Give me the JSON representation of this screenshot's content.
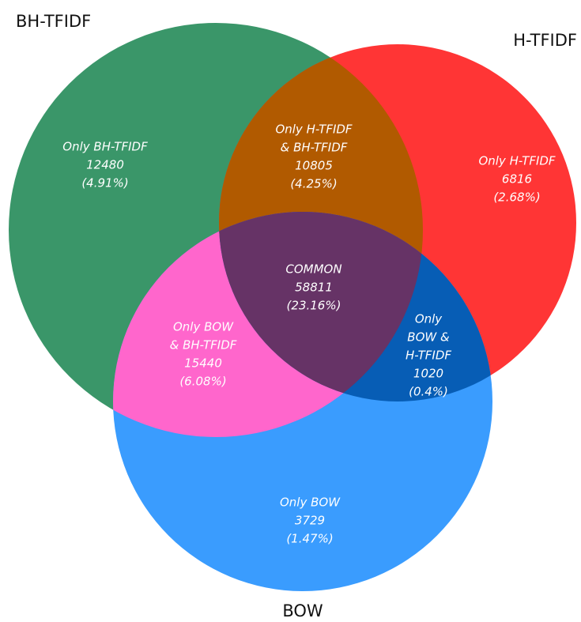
{
  "sets": [
    {
      "label": "BH-TFIDF"
    },
    {
      "label": "H-TFIDF"
    },
    {
      "label": "BOW"
    }
  ],
  "regions": [
    {
      "lines": [
        "Only BH-TFIDF",
        "12480",
        "(4.91%)"
      ]
    },
    {
      "lines": [
        "Only H-TFIDF",
        "& BH-TFIDF",
        "10805",
        "(4.25%)"
      ]
    },
    {
      "lines": [
        "Only H-TFIDF",
        "6816",
        "(2.68%)"
      ]
    },
    {
      "lines": [
        "COMMON",
        "58811",
        "(23.16%)"
      ]
    },
    {
      "lines": [
        "Only BOW",
        "& BH-TFIDF",
        "15440",
        "(6.08%)"
      ]
    },
    {
      "lines": [
        "Only",
        "BOW &",
        "H-TFIDF",
        "1020",
        "(0.4%)"
      ]
    },
    {
      "lines": [
        "Only BOW",
        "3729",
        "(1.47%)"
      ]
    }
  ]
}
